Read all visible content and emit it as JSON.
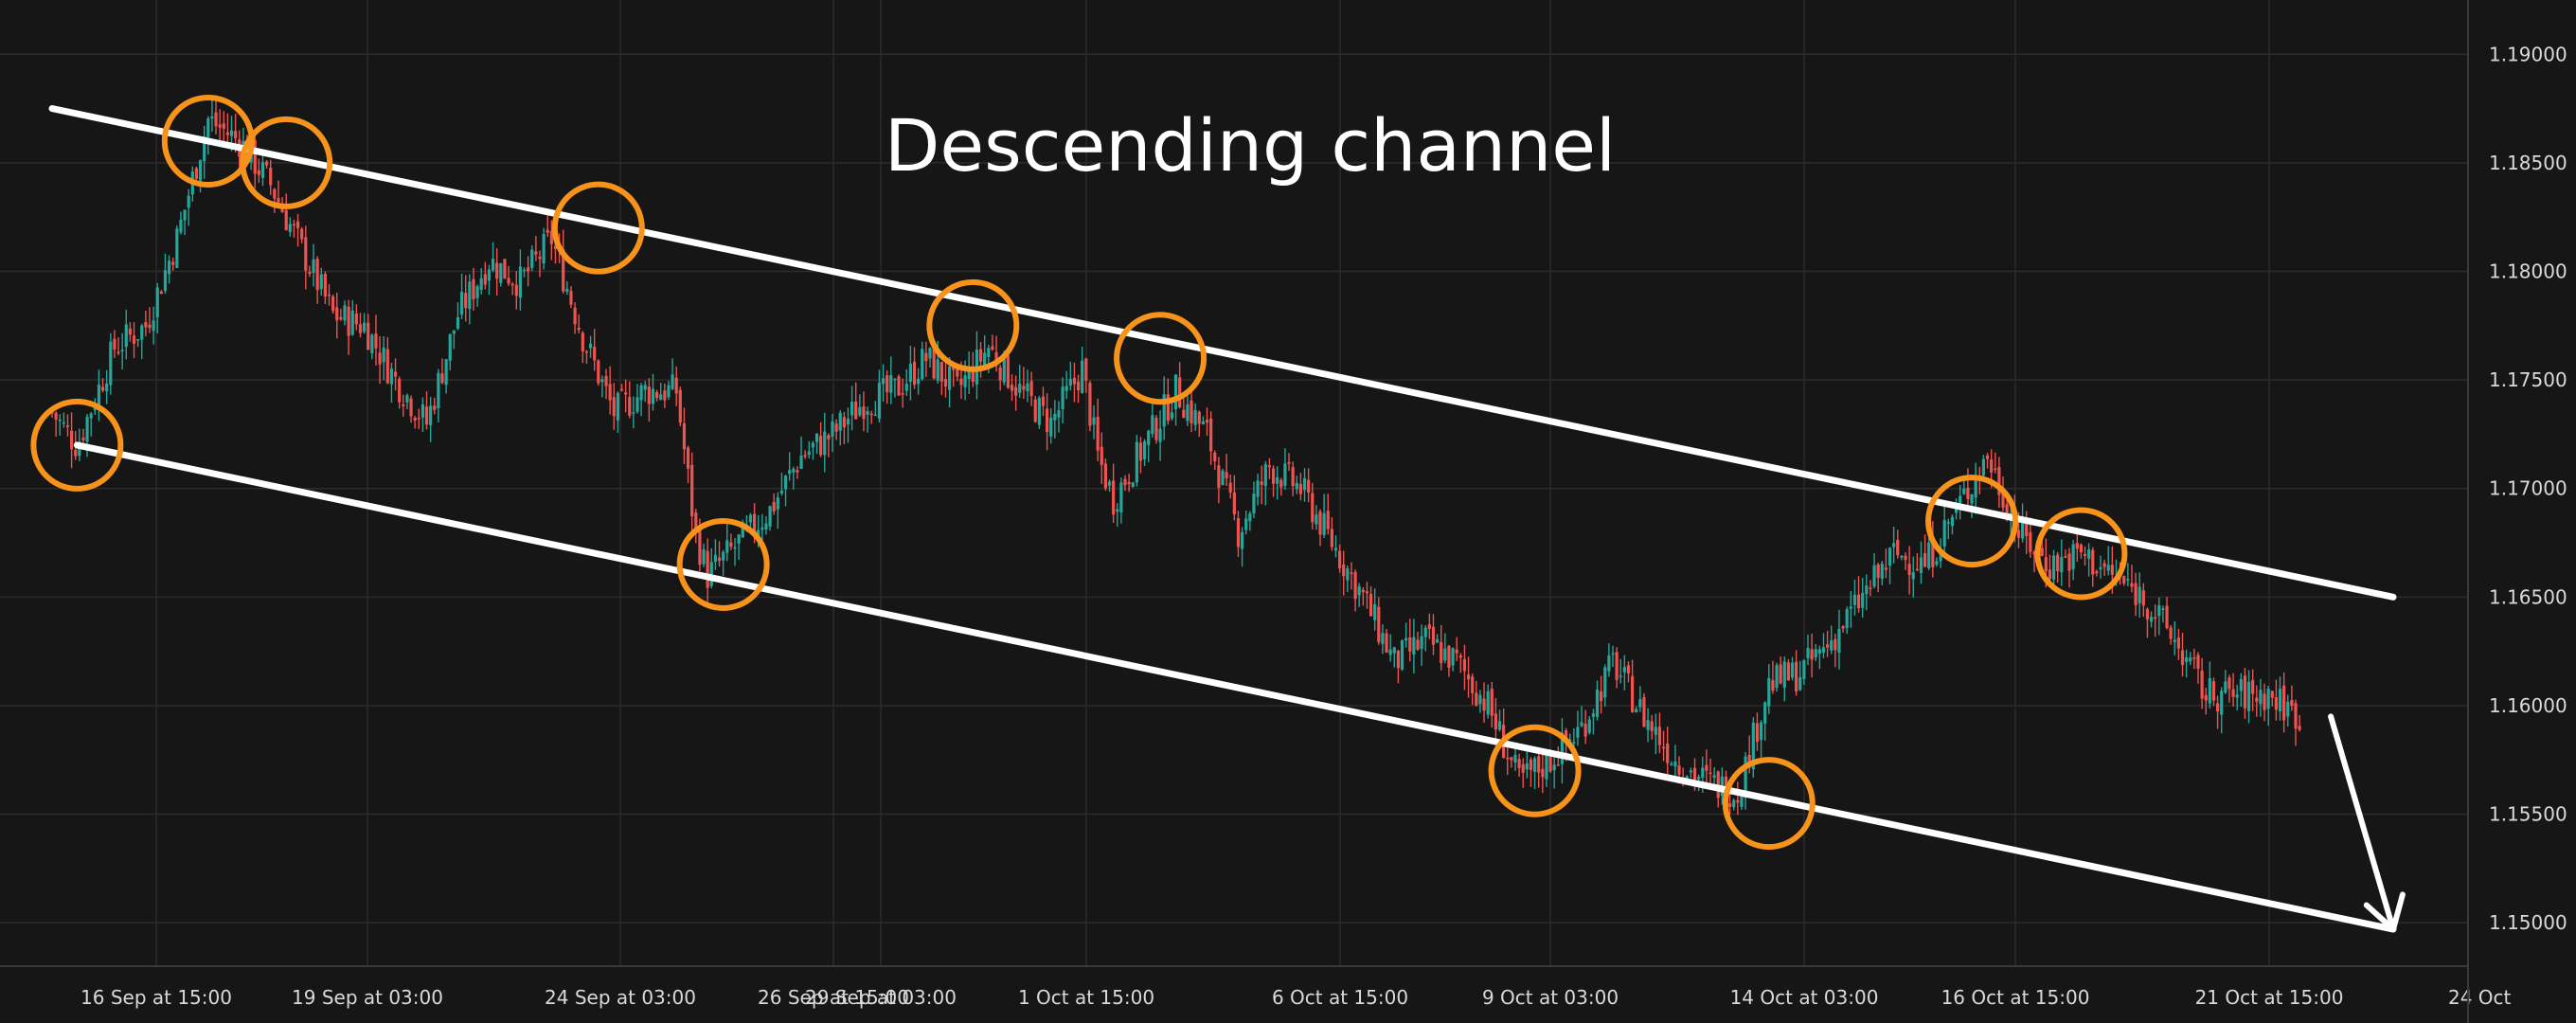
{
  "chart_data": {
    "type": "candlestick",
    "title": "Descending channel",
    "y_ticks": [
      "1.15000",
      "1.15500",
      "1.16000",
      "1.16500",
      "1.17000",
      "1.17500",
      "1.18000",
      "1.18500",
      "1.19000"
    ],
    "ylim": [
      1.148,
      1.1925
    ],
    "x_ticks": [
      "16 Sep at 15:00",
      "19 Sep at 03:00",
      "24 Sep at 03:00",
      "26 Sep at 15:00",
      "29 Sep at 03:00",
      "1 Oct at 15:00",
      "6 Oct at 15:00",
      "9 Oct at 03:00",
      "14 Oct at 03:00",
      "16 Oct at 15:00",
      "21 Oct at 15:00",
      "24 Oct"
    ],
    "grid": true,
    "colors": {
      "background": "#161616",
      "grid": "#2c2c2c",
      "up_candle": "#26a69a",
      "down_candle": "#ef5350",
      "channel_line": "#ffffff",
      "touch_marker": "#f7931a",
      "axis_text": "#d9d9d9"
    },
    "price_path_keypoints": [
      {
        "x": 0.0,
        "y": 1.1735
      },
      {
        "x": 0.8,
        "y": 1.172
      },
      {
        "x": 2.0,
        "y": 1.1765
      },
      {
        "x": 3.0,
        "y": 1.1775
      },
      {
        "x": 4.0,
        "y": 1.1815
      },
      {
        "x": 5.0,
        "y": 1.187
      },
      {
        "x": 6.0,
        "y": 1.186
      },
      {
        "x": 7.0,
        "y": 1.184
      },
      {
        "x": 8.0,
        "y": 1.181
      },
      {
        "x": 9.0,
        "y": 1.178
      },
      {
        "x": 10.0,
        "y": 1.1775
      },
      {
        "x": 11.0,
        "y": 1.175
      },
      {
        "x": 12.0,
        "y": 1.173
      },
      {
        "x": 13.0,
        "y": 1.178
      },
      {
        "x": 14.0,
        "y": 1.1805
      },
      {
        "x": 15.0,
        "y": 1.1795
      },
      {
        "x": 16.0,
        "y": 1.1815
      },
      {
        "x": 17.0,
        "y": 1.177
      },
      {
        "x": 18.0,
        "y": 1.1735
      },
      {
        "x": 19.0,
        "y": 1.1745
      },
      {
        "x": 20.0,
        "y": 1.1745
      },
      {
        "x": 20.6,
        "y": 1.168
      },
      {
        "x": 21.0,
        "y": 1.166
      },
      {
        "x": 22.0,
        "y": 1.1675
      },
      {
        "x": 23.0,
        "y": 1.169
      },
      {
        "x": 24.0,
        "y": 1.1715
      },
      {
        "x": 25.0,
        "y": 1.1725
      },
      {
        "x": 26.0,
        "y": 1.174
      },
      {
        "x": 27.0,
        "y": 1.1745
      },
      {
        "x": 28.0,
        "y": 1.176
      },
      {
        "x": 29.0,
        "y": 1.1745
      },
      {
        "x": 30.0,
        "y": 1.1765
      },
      {
        "x": 31.0,
        "y": 1.1745
      },
      {
        "x": 32.0,
        "y": 1.173
      },
      {
        "x": 33.0,
        "y": 1.1755
      },
      {
        "x": 33.5,
        "y": 1.1715
      },
      {
        "x": 34.0,
        "y": 1.1695
      },
      {
        "x": 35.0,
        "y": 1.172
      },
      {
        "x": 36.0,
        "y": 1.1745
      },
      {
        "x": 37.0,
        "y": 1.1725
      },
      {
        "x": 38.0,
        "y": 1.168
      },
      {
        "x": 39.0,
        "y": 1.171
      },
      {
        "x": 40.0,
        "y": 1.17
      },
      {
        "x": 41.0,
        "y": 1.1675
      },
      {
        "x": 42.0,
        "y": 1.165
      },
      {
        "x": 43.0,
        "y": 1.162
      },
      {
        "x": 44.0,
        "y": 1.163
      },
      {
        "x": 45.0,
        "y": 1.162
      },
      {
        "x": 46.0,
        "y": 1.16
      },
      {
        "x": 47.0,
        "y": 1.1565
      },
      {
        "x": 48.0,
        "y": 1.1575
      },
      {
        "x": 49.0,
        "y": 1.159
      },
      {
        "x": 50.0,
        "y": 1.162
      },
      {
        "x": 51.0,
        "y": 1.1595
      },
      {
        "x": 52.0,
        "y": 1.1575
      },
      {
        "x": 53.0,
        "y": 1.1565
      },
      {
        "x": 54.0,
        "y": 1.156
      },
      {
        "x": 55.0,
        "y": 1.161
      },
      {
        "x": 56.0,
        "y": 1.1615
      },
      {
        "x": 57.0,
        "y": 1.163
      },
      {
        "x": 58.0,
        "y": 1.165
      },
      {
        "x": 59.0,
        "y": 1.167
      },
      {
        "x": 60.0,
        "y": 1.1665
      },
      {
        "x": 61.0,
        "y": 1.169
      },
      {
        "x": 62.0,
        "y": 1.1715
      },
      {
        "x": 63.0,
        "y": 1.168
      },
      {
        "x": 64.0,
        "y": 1.1665
      },
      {
        "x": 65.0,
        "y": 1.167
      },
      {
        "x": 66.0,
        "y": 1.166
      },
      {
        "x": 67.0,
        "y": 1.165
      },
      {
        "x": 68.0,
        "y": 1.163
      },
      {
        "x": 69.0,
        "y": 1.1605
      },
      {
        "x": 70.0,
        "y": 1.1605
      },
      {
        "x": 71.0,
        "y": 1.1605
      },
      {
        "x": 72.0,
        "y": 1.1595
      }
    ],
    "channel_upper": {
      "start": {
        "x": 0.0,
        "y": 1.1875
      },
      "end": {
        "x": 75.0,
        "y": 1.165
      }
    },
    "channel_lower": {
      "start": {
        "x": 0.8,
        "y": 1.172
      },
      "end": {
        "x": 75.0,
        "y": 1.1497
      }
    },
    "forecast_arrow": {
      "start": {
        "x": 73.0,
        "y": 1.1595
      },
      "end": {
        "x": 75.0,
        "y": 1.1497
      }
    },
    "touch_points": [
      {
        "x": 0.8,
        "y": 1.172
      },
      {
        "x": 5.0,
        "y": 1.186
      },
      {
        "x": 7.5,
        "y": 1.185
      },
      {
        "x": 17.5,
        "y": 1.182
      },
      {
        "x": 21.5,
        "y": 1.1665
      },
      {
        "x": 29.5,
        "y": 1.1775
      },
      {
        "x": 35.5,
        "y": 1.176
      },
      {
        "x": 47.5,
        "y": 1.157
      },
      {
        "x": 55.0,
        "y": 1.1555
      },
      {
        "x": 61.5,
        "y": 1.1685
      },
      {
        "x": 65.0,
        "y": 1.167
      }
    ]
  }
}
